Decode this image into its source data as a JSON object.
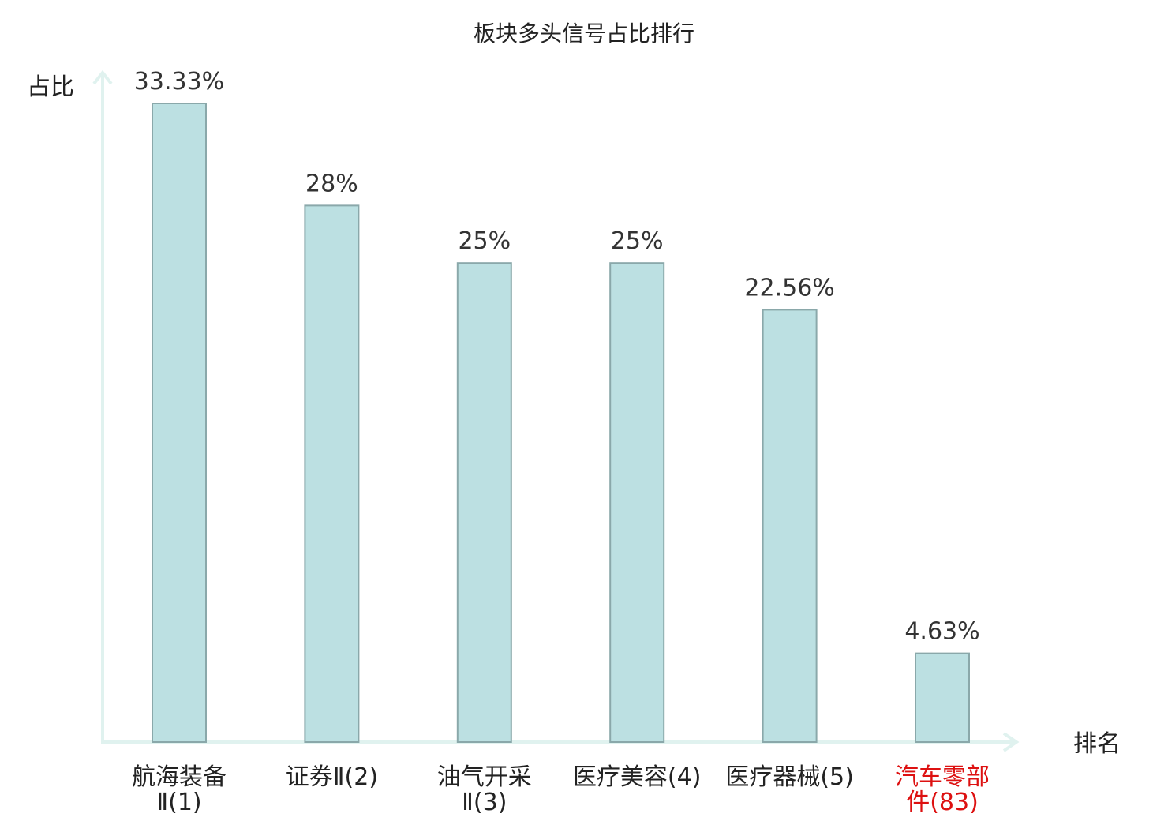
{
  "chart_data": {
    "type": "bar",
    "title": "板块多头信号占比排行",
    "ylabel": "占比",
    "xlabel": "排名",
    "categories": [
      [
        "航海装备",
        "Ⅱ(1)"
      ],
      [
        "证券Ⅱ(2)"
      ],
      [
        "油气开采",
        "Ⅱ(3)"
      ],
      [
        "医疗美容(4)"
      ],
      [
        "医疗器械(5)"
      ],
      [
        "汽车零部",
        "件(83)"
      ]
    ],
    "values": [
      33.33,
      28,
      25,
      25,
      22.56,
      4.63
    ],
    "value_labels": [
      "33.33%",
      "28%",
      "25%",
      "25%",
      "22.56%",
      "4.63%"
    ],
    "highlight_index": 5,
    "ylim": [
      0,
      33.33
    ],
    "grid": false,
    "colors": {
      "bar_fill": "#bce0e2",
      "bar_stroke": "#8aa8aa",
      "axis": "#e0f2ef",
      "highlight_text": "#dd1111"
    }
  }
}
